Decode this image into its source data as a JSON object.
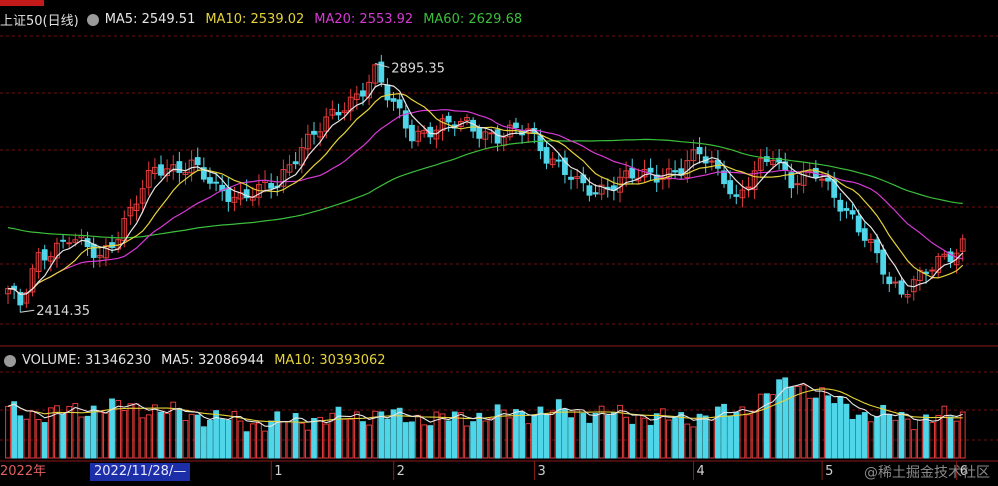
{
  "colors": {
    "up": "#e33b3b",
    "down": "#4fd6e8",
    "ma5": "#e6e6e6",
    "ma10": "#e5d33a",
    "ma20": "#d63ad3",
    "ma60": "#3bbf3b",
    "grid": "#6b1010"
  },
  "header": {
    "title": "上证50(日线)",
    "ma5": "MA5: 2549.51",
    "ma10": "MA10: 2539.02",
    "ma20": "MA20: 2553.92",
    "ma60": "MA60: 2629.68"
  },
  "volume_header": {
    "volume": "VOLUME: 31346230",
    "ma5": "MA5: 32086944",
    "ma10": "MA10: 30393062"
  },
  "x_axis": {
    "left_label": "2022年",
    "cursor_date": "2022/11/28/—",
    "month_labels": [
      {
        "text": "1",
        "index": 44
      },
      {
        "text": "2",
        "index": 64
      },
      {
        "text": "3",
        "index": 87
      },
      {
        "text": "4",
        "index": 113
      },
      {
        "text": "5",
        "index": 134
      },
      {
        "text": "6",
        "index": 156
      }
    ]
  },
  "annotations": {
    "high": "2895.35",
    "low": "2414.35"
  },
  "watermark": "@稀土掘金技术社区",
  "chart_data": [
    {
      "type": "candlestick",
      "title": "上证50(日线)",
      "ylim": [
        2380,
        2960
      ],
      "grid": true,
      "series": [
        {
          "name": "MA5",
          "value": 2549.51
        },
        {
          "name": "MA10",
          "value": 2539.02
        },
        {
          "name": "MA20",
          "value": 2553.92
        },
        {
          "name": "MA60",
          "value": 2629.68
        }
      ],
      "annotations": [
        {
          "text": "2895.35",
          "index": 60,
          "value": 2895.35
        },
        {
          "text": "2414.35",
          "index": 2,
          "value": 2414.35
        }
      ],
      "keypoints": [
        [
          0,
          2460
        ],
        [
          2,
          2425
        ],
        [
          5,
          2520
        ],
        [
          10,
          2560
        ],
        [
          15,
          2520
        ],
        [
          18,
          2570
        ],
        [
          24,
          2690
        ],
        [
          30,
          2700
        ],
        [
          34,
          2650
        ],
        [
          38,
          2640
        ],
        [
          44,
          2660
        ],
        [
          48,
          2740
        ],
        [
          54,
          2800
        ],
        [
          58,
          2850
        ],
        [
          60,
          2880
        ],
        [
          62,
          2830
        ],
        [
          66,
          2760
        ],
        [
          70,
          2770
        ],
        [
          75,
          2780
        ],
        [
          80,
          2750
        ],
        [
          85,
          2770
        ],
        [
          88,
          2720
        ],
        [
          93,
          2660
        ],
        [
          96,
          2650
        ],
        [
          100,
          2670
        ],
        [
          105,
          2680
        ],
        [
          110,
          2690
        ],
        [
          113,
          2720
        ],
        [
          117,
          2680
        ],
        [
          119,
          2630
        ],
        [
          122,
          2680
        ],
        [
          125,
          2720
        ],
        [
          128,
          2670
        ],
        [
          132,
          2680
        ],
        [
          135,
          2640
        ],
        [
          138,
          2600
        ],
        [
          141,
          2540
        ],
        [
          144,
          2470
        ],
        [
          146,
          2455
        ],
        [
          148,
          2480
        ],
        [
          151,
          2500
        ],
        [
          154,
          2520
        ],
        [
          156,
          2550
        ]
      ]
    },
    {
      "type": "bar",
      "title": "VOLUME",
      "series": [
        {
          "name": "VOLUME",
          "value": 31346230
        },
        {
          "name": "MA5",
          "value": 32086944
        },
        {
          "name": "MA10",
          "value": 30393062
        }
      ],
      "keypoints": [
        [
          0,
          0.55
        ],
        [
          5,
          0.5
        ],
        [
          10,
          0.55
        ],
        [
          20,
          0.6
        ],
        [
          30,
          0.5
        ],
        [
          40,
          0.4
        ],
        [
          50,
          0.45
        ],
        [
          60,
          0.5
        ],
        [
          70,
          0.45
        ],
        [
          80,
          0.5
        ],
        [
          90,
          0.55
        ],
        [
          100,
          0.5
        ],
        [
          110,
          0.45
        ],
        [
          120,
          0.55
        ],
        [
          128,
          0.9
        ],
        [
          132,
          0.75
        ],
        [
          140,
          0.5
        ],
        [
          150,
          0.45
        ],
        [
          156,
          0.5
        ]
      ]
    }
  ]
}
